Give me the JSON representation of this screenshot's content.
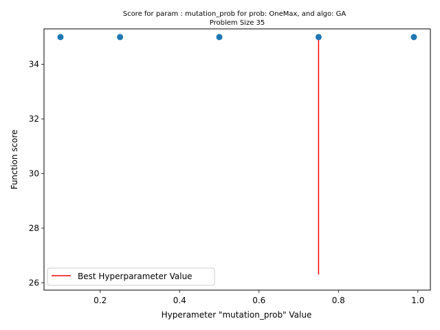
{
  "chart_data": {
    "type": "scatter",
    "title": "Score for param : mutation_prob for prob: OneMax, and algo: GA",
    "subtitle": "Problem Size 35",
    "xlabel": "Hyperameter \"mutation_prob\" Value",
    "ylabel": "Function score",
    "xlim": [
      0.0585,
      1.0315
    ],
    "ylim": [
      25.73,
      35.3
    ],
    "xticks": [
      0.2,
      0.4,
      0.6,
      0.8,
      1.0
    ],
    "xtick_labels": [
      "0.2",
      "0.4",
      "0.6",
      "0.8",
      "1.0"
    ],
    "yticks": [
      26,
      28,
      30,
      32,
      34
    ],
    "ytick_labels": [
      "26",
      "28",
      "30",
      "32",
      "34"
    ],
    "grid": false,
    "legend_position": "lower-left",
    "series": [
      {
        "type": "scatter",
        "color": "#1f77b4",
        "x": [
          0.1,
          0.25,
          0.5,
          0.75,
          0.99
        ],
        "y": [
          35,
          35,
          35,
          35,
          35
        ]
      },
      {
        "type": "vline",
        "name": "Best Hyperparameter Value",
        "color": "#ff0000",
        "x": 0.75,
        "y_range": [
          26.3,
          35
        ]
      }
    ]
  }
}
